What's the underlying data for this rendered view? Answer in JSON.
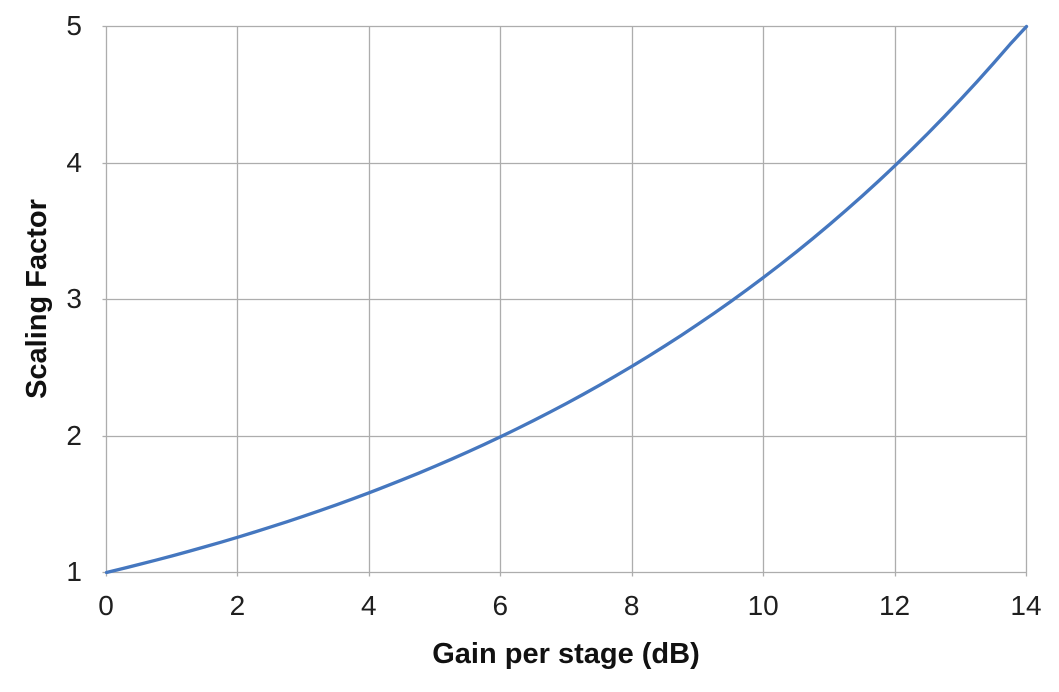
{
  "chart_data": {
    "type": "line",
    "title": "",
    "xlabel": "Gain per stage (dB)",
    "ylabel": "Scaling Factor",
    "xlim": [
      0,
      14
    ],
    "ylim": [
      1,
      5
    ],
    "x_ticks": [
      0,
      2,
      4,
      6,
      8,
      10,
      12,
      14
    ],
    "y_ticks": [
      1,
      2,
      3,
      4,
      5
    ],
    "grid": true,
    "legend_position": "none",
    "series": [
      {
        "color": "#4577BF",
        "x": [
          0,
          0.25,
          0.5,
          0.75,
          1,
          1.25,
          1.5,
          1.75,
          2,
          2.25,
          2.5,
          2.75,
          3,
          3.25,
          3.5,
          3.75,
          4,
          4.25,
          4.5,
          4.75,
          5,
          5.25,
          5.5,
          5.75,
          6,
          6.25,
          6.5,
          6.75,
          7,
          7.25,
          7.5,
          7.75,
          8,
          8.25,
          8.5,
          8.75,
          9,
          9.25,
          9.5,
          9.75,
          10,
          10.25,
          10.5,
          10.75,
          11,
          11.25,
          11.5,
          11.75,
          12,
          12.25,
          12.5,
          12.75,
          13,
          13.25,
          13.5,
          13.75,
          14
        ],
        "y": [
          1.0,
          1.0292,
          1.0593,
          1.0902,
          1.122,
          1.1548,
          1.1885,
          1.2232,
          1.2589,
          1.2957,
          1.3335,
          1.3725,
          1.4125,
          1.4538,
          1.4962,
          1.5399,
          1.5849,
          1.6312,
          1.6788,
          1.7278,
          1.7783,
          1.8302,
          1.8836,
          1.9387,
          1.9953,
          2.0535,
          2.1135,
          2.1752,
          2.2387,
          2.3041,
          2.3714,
          2.4406,
          2.5119,
          2.5852,
          2.6607,
          2.7384,
          2.8184,
          2.9007,
          2.9854,
          3.0726,
          3.1623,
          3.2546,
          3.3497,
          3.4475,
          3.5481,
          3.6517,
          3.7584,
          3.8682,
          3.9811,
          4.0973,
          4.217,
          4.3402,
          4.4668,
          4.5971,
          4.7315,
          4.8697,
          5.0119
        ]
      }
    ]
  },
  "colors": {
    "background": "#FFFFFF",
    "gridline": "#ADADAD",
    "tick_text": "#1F1F1F",
    "title_text": "#111111",
    "line": "#4577BF"
  }
}
